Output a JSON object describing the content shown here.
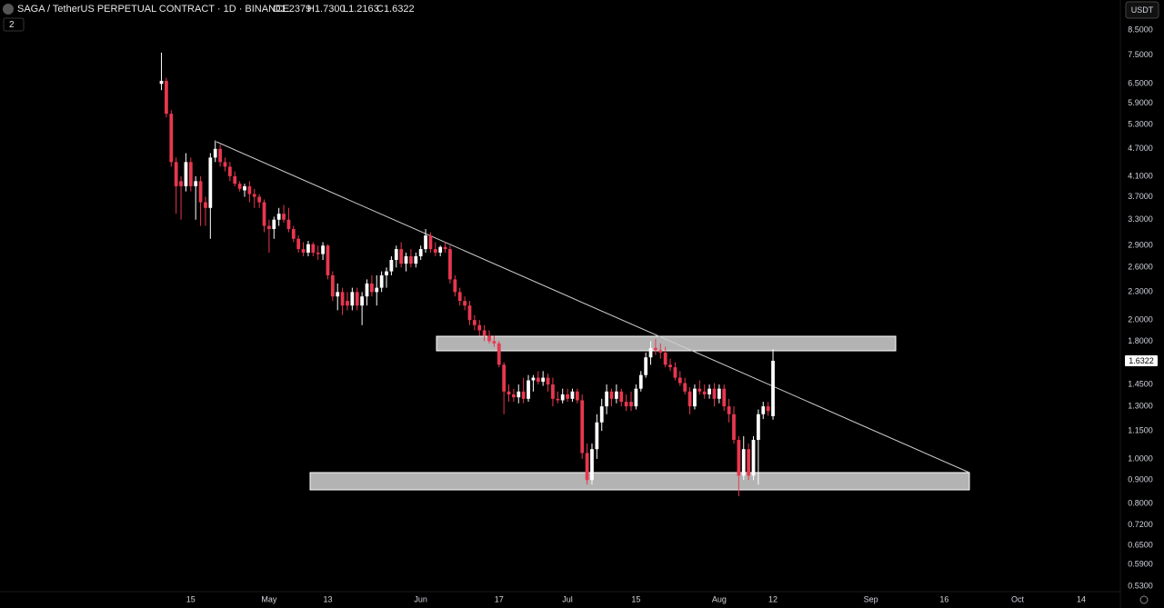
{
  "header": {
    "title": "SAGA / TetherUS PERPETUAL CONTRACT · 1D · BINANCE",
    "ohlc": [
      "O1.2379",
      "H1.7300",
      "L1.2163",
      "C1.6322"
    ],
    "indicators": "2",
    "currency": "USDT"
  },
  "chart_data": {
    "type": "candlestick",
    "log_scale": true,
    "up_color": "#ffffff",
    "down_color": "#e8374f",
    "x": [
      "04-09",
      "04-10",
      "04-11",
      "04-12",
      "04-13",
      "04-14",
      "04-15",
      "04-16",
      "04-17",
      "04-18",
      "04-19",
      "04-20",
      "04-21",
      "04-22",
      "04-23",
      "04-24",
      "04-25",
      "04-26",
      "04-27",
      "04-28",
      "04-29",
      "04-30",
      "05-01",
      "05-02",
      "05-03",
      "05-04",
      "05-05",
      "05-06",
      "05-07",
      "05-08",
      "05-09",
      "05-10",
      "05-11",
      "05-12",
      "05-13",
      "05-14",
      "05-15",
      "05-16",
      "05-17",
      "05-18",
      "05-19",
      "05-20",
      "05-21",
      "05-22",
      "05-23",
      "05-24",
      "05-25",
      "05-26",
      "05-27",
      "05-28",
      "05-29",
      "05-30",
      "05-31",
      "06-01",
      "06-02",
      "06-03",
      "06-04",
      "06-05",
      "06-06",
      "06-07",
      "06-08",
      "06-09",
      "06-10",
      "06-11",
      "06-12",
      "06-13",
      "06-14",
      "06-15",
      "06-16",
      "06-17",
      "06-18",
      "06-19",
      "06-20",
      "06-21",
      "06-22",
      "06-23",
      "06-24",
      "06-25",
      "06-26",
      "06-27",
      "06-28",
      "06-29",
      "06-30",
      "07-01",
      "07-02",
      "07-03",
      "07-04",
      "07-05",
      "07-06",
      "07-07",
      "07-08",
      "07-09",
      "07-10",
      "07-11",
      "07-12",
      "07-13",
      "07-14",
      "07-15",
      "07-16",
      "07-17",
      "07-18",
      "07-19",
      "07-20",
      "07-21",
      "07-22",
      "07-23",
      "07-24",
      "07-25",
      "07-26",
      "07-27",
      "07-28",
      "07-29",
      "07-30",
      "07-31",
      "08-01",
      "08-02",
      "08-03",
      "08-04",
      "08-05",
      "08-06",
      "08-07",
      "08-08",
      "08-09",
      "08-10",
      "08-11",
      "08-12"
    ],
    "open": [
      6.5,
      6.6,
      5.6,
      4.4,
      4.0,
      3.9,
      4.4,
      3.9,
      4.0,
      3.6,
      3.5,
      4.5,
      4.7,
      4.4,
      4.3,
      4.1,
      3.95,
      3.82,
      3.9,
      3.75,
      3.7,
      3.6,
      3.2,
      3.15,
      3.3,
      3.4,
      3.3,
      3.15,
      3.0,
      2.85,
      2.8,
      2.92,
      2.8,
      2.78,
      2.9,
      2.5,
      2.25,
      2.3,
      2.2,
      2.15,
      2.3,
      2.15,
      2.25,
      2.4,
      2.3,
      2.35,
      2.5,
      2.55,
      2.7,
      2.85,
      2.65,
      2.75,
      2.65,
      2.75,
      2.85,
      3.05,
      2.85,
      2.8,
      2.88,
      2.85,
      2.45,
      2.3,
      2.2,
      2.15,
      2.0,
      1.95,
      1.9,
      1.85,
      1.8,
      1.78,
      1.6,
      1.4,
      1.38,
      1.36,
      1.4,
      1.35,
      1.48,
      1.5,
      1.47,
      1.5,
      1.45,
      1.35,
      1.34,
      1.38,
      1.35,
      1.4,
      1.34,
      1.03,
      0.9,
      1.05,
      1.2,
      1.3,
      1.4,
      1.35,
      1.4,
      1.33,
      1.33,
      1.3,
      1.42,
      1.52,
      1.66,
      1.74,
      1.72,
      1.7,
      1.6,
      1.58,
      1.5,
      1.46,
      1.4,
      1.3,
      1.42,
      1.4,
      1.38,
      1.42,
      1.35,
      1.42,
      1.3,
      1.25,
      1.1,
      0.92,
      1.05,
      0.92,
      1.1,
      1.25,
      1.3,
      1.2379
    ],
    "high": [
      7.6,
      6.7,
      5.7,
      4.5,
      4.1,
      4.6,
      4.5,
      4.1,
      4.1,
      3.7,
      4.6,
      4.9,
      4.8,
      4.5,
      4.4,
      4.2,
      4.0,
      3.95,
      4.0,
      3.85,
      3.75,
      3.65,
      3.3,
      3.35,
      3.5,
      3.55,
      3.5,
      3.2,
      3.05,
      2.95,
      2.97,
      2.95,
      2.9,
      2.95,
      2.92,
      2.55,
      2.4,
      2.35,
      2.3,
      2.35,
      2.35,
      2.3,
      2.45,
      2.5,
      2.5,
      2.55,
      2.6,
      2.75,
      2.9,
      2.95,
      2.8,
      2.85,
      2.8,
      2.9,
      3.15,
      3.1,
      2.95,
      2.9,
      2.95,
      2.9,
      2.5,
      2.35,
      2.25,
      2.2,
      2.05,
      2.0,
      1.95,
      1.9,
      1.85,
      1.8,
      1.62,
      1.45,
      1.42,
      1.45,
      1.5,
      1.52,
      1.52,
      1.55,
      1.55,
      1.53,
      1.5,
      1.4,
      1.42,
      1.42,
      1.42,
      1.42,
      1.38,
      1.08,
      1.08,
      1.25,
      1.35,
      1.45,
      1.42,
      1.45,
      1.42,
      1.38,
      1.4,
      1.45,
      1.55,
      1.7,
      1.8,
      1.82,
      1.78,
      1.75,
      1.65,
      1.62,
      1.55,
      1.5,
      1.43,
      1.45,
      1.48,
      1.45,
      1.45,
      1.46,
      1.45,
      1.45,
      1.35,
      1.3,
      1.12,
      1.12,
      1.08,
      1.12,
      1.28,
      1.33,
      1.33,
      1.73
    ],
    "low": [
      6.3,
      5.5,
      4.3,
      3.4,
      3.3,
      3.8,
      3.8,
      3.3,
      3.2,
      3.2,
      3.0,
      4.4,
      4.3,
      4.2,
      4.0,
      3.9,
      3.8,
      3.7,
      3.6,
      3.5,
      3.5,
      3.1,
      2.8,
      3.0,
      3.2,
      3.25,
      3.1,
      2.95,
      2.8,
      2.75,
      2.75,
      2.75,
      2.7,
      2.7,
      2.45,
      2.2,
      2.1,
      2.05,
      2.1,
      2.1,
      2.1,
      1.95,
      2.15,
      2.25,
      2.15,
      2.3,
      2.35,
      2.5,
      2.6,
      2.6,
      2.55,
      2.6,
      2.6,
      2.7,
      2.8,
      2.8,
      2.75,
      2.75,
      2.8,
      2.4,
      2.25,
      2.15,
      2.1,
      1.95,
      1.9,
      1.85,
      1.8,
      1.78,
      1.75,
      1.58,
      1.25,
      1.33,
      1.33,
      1.32,
      1.32,
      1.33,
      1.4,
      1.45,
      1.44,
      1.4,
      1.3,
      1.32,
      1.32,
      1.33,
      1.33,
      1.32,
      1.0,
      0.88,
      0.88,
      1.0,
      1.15,
      1.25,
      1.3,
      1.32,
      1.3,
      1.27,
      1.27,
      1.28,
      1.4,
      1.5,
      1.6,
      1.68,
      1.65,
      1.58,
      1.55,
      1.48,
      1.44,
      1.38,
      1.25,
      1.28,
      1.38,
      1.35,
      1.35,
      1.3,
      1.32,
      1.27,
      1.2,
      1.08,
      0.83,
      0.9,
      0.9,
      0.9,
      0.88,
      1.22,
      1.24,
      1.2163
    ],
    "close": [
      6.6,
      5.6,
      4.4,
      3.9,
      3.9,
      4.4,
      3.9,
      4.0,
      3.6,
      3.5,
      4.5,
      4.7,
      4.4,
      4.3,
      4.1,
      3.95,
      3.85,
      3.9,
      3.75,
      3.7,
      3.6,
      3.2,
      3.15,
      3.3,
      3.4,
      3.3,
      3.15,
      3.0,
      2.85,
      2.8,
      2.92,
      2.8,
      2.78,
      2.9,
      2.5,
      2.25,
      2.3,
      2.15,
      2.15,
      2.3,
      2.15,
      2.25,
      2.4,
      2.3,
      2.35,
      2.5,
      2.55,
      2.7,
      2.85,
      2.65,
      2.75,
      2.65,
      2.75,
      2.85,
      3.05,
      2.85,
      2.8,
      2.88,
      2.85,
      2.45,
      2.3,
      2.2,
      2.15,
      2.0,
      1.95,
      1.9,
      1.85,
      1.8,
      1.78,
      1.6,
      1.4,
      1.38,
      1.36,
      1.4,
      1.35,
      1.48,
      1.5,
      1.47,
      1.5,
      1.45,
      1.35,
      1.34,
      1.38,
      1.35,
      1.4,
      1.34,
      1.03,
      0.9,
      1.05,
      1.2,
      1.3,
      1.4,
      1.35,
      1.4,
      1.33,
      1.3,
      1.3,
      1.42,
      1.52,
      1.66,
      1.74,
      1.72,
      1.7,
      1.6,
      1.58,
      1.5,
      1.46,
      1.4,
      1.3,
      1.42,
      1.4,
      1.38,
      1.42,
      1.35,
      1.42,
      1.3,
      1.25,
      1.1,
      0.92,
      1.05,
      0.92,
      1.1,
      1.25,
      1.3,
      1.27,
      1.6322
    ],
    "last_price_label": "1.6322",
    "xlim": [
      "03-07",
      "10-22"
    ],
    "xticks": [
      {
        "value": "04-15",
        "label": "15"
      },
      {
        "value": "05-01",
        "label": "May"
      },
      {
        "value": "05-13",
        "label": "13"
      },
      {
        "value": "06-01",
        "label": "Jun"
      },
      {
        "value": "06-17",
        "label": "17"
      },
      {
        "value": "07-01",
        "label": "Jul"
      },
      {
        "value": "07-15",
        "label": "15"
      },
      {
        "value": "08-01",
        "label": "Aug"
      },
      {
        "value": "08-12",
        "label": "12"
      },
      {
        "value": "09-01",
        "label": "Sep"
      },
      {
        "value": "09-16",
        "label": "16"
      },
      {
        "value": "10-01",
        "label": "Oct"
      },
      {
        "value": "10-14",
        "label": "14"
      }
    ],
    "ylim": [
      0.495,
      9.88
    ],
    "yticks": [
      {
        "value": 8.5,
        "label": "8.5000"
      },
      {
        "value": 7.5,
        "label": "7.5000"
      },
      {
        "value": 6.5,
        "label": "6.5000"
      },
      {
        "value": 5.9,
        "label": "5.9000"
      },
      {
        "value": 5.3,
        "label": "5.3000"
      },
      {
        "value": 4.7,
        "label": "4.7000"
      },
      {
        "value": 4.1,
        "label": "4.1000"
      },
      {
        "value": 3.7,
        "label": "3.7000"
      },
      {
        "value": 3.3,
        "label": "3.3000"
      },
      {
        "value": 2.9,
        "label": "2.9000"
      },
      {
        "value": 2.6,
        "label": "2.6000"
      },
      {
        "value": 2.3,
        "label": "2.3000"
      },
      {
        "value": 2.0,
        "label": "2.0000"
      },
      {
        "value": 1.8,
        "label": "1.8000"
      },
      {
        "value": 1.45,
        "label": "1.4500"
      },
      {
        "value": 1.3,
        "label": "1.3000"
      },
      {
        "value": 1.15,
        "label": "1.1500"
      },
      {
        "value": 1.0,
        "label": "1.0000"
      },
      {
        "value": 0.9,
        "label": "0.9000"
      },
      {
        "value": 0.8,
        "label": "0.8000"
      },
      {
        "value": 0.72,
        "label": "0.7200"
      },
      {
        "value": 0.65,
        "label": "0.6500"
      },
      {
        "value": 0.59,
        "label": "0.5900"
      },
      {
        "value": 0.53,
        "label": "0.5300"
      }
    ]
  }
}
